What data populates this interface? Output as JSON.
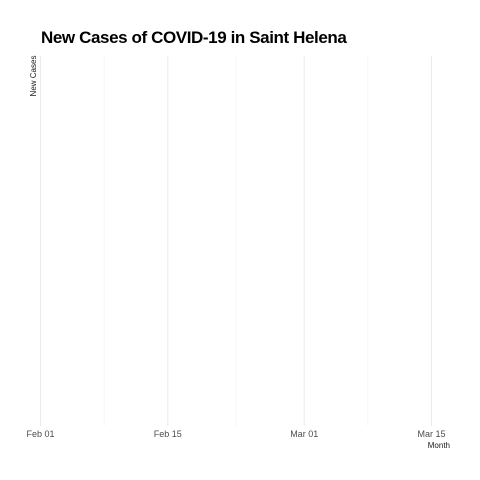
{
  "chart_data": {
    "type": "bar",
    "title": "New Cases of COVID-19 in Saint Helena",
    "xlabel": "Month",
    "ylabel": "New Cases",
    "x_ticks": [
      "Feb 01",
      "Feb 15",
      "Mar 01",
      "Mar 15"
    ],
    "x_tick_dates": [
      "2020-02-01",
      "2020-02-15",
      "2020-03-01",
      "2020-03-15"
    ],
    "xlim": [
      "2020-02-01",
      "2020-03-15"
    ],
    "x": [],
    "values": [],
    "grid": true,
    "legend": "none"
  }
}
